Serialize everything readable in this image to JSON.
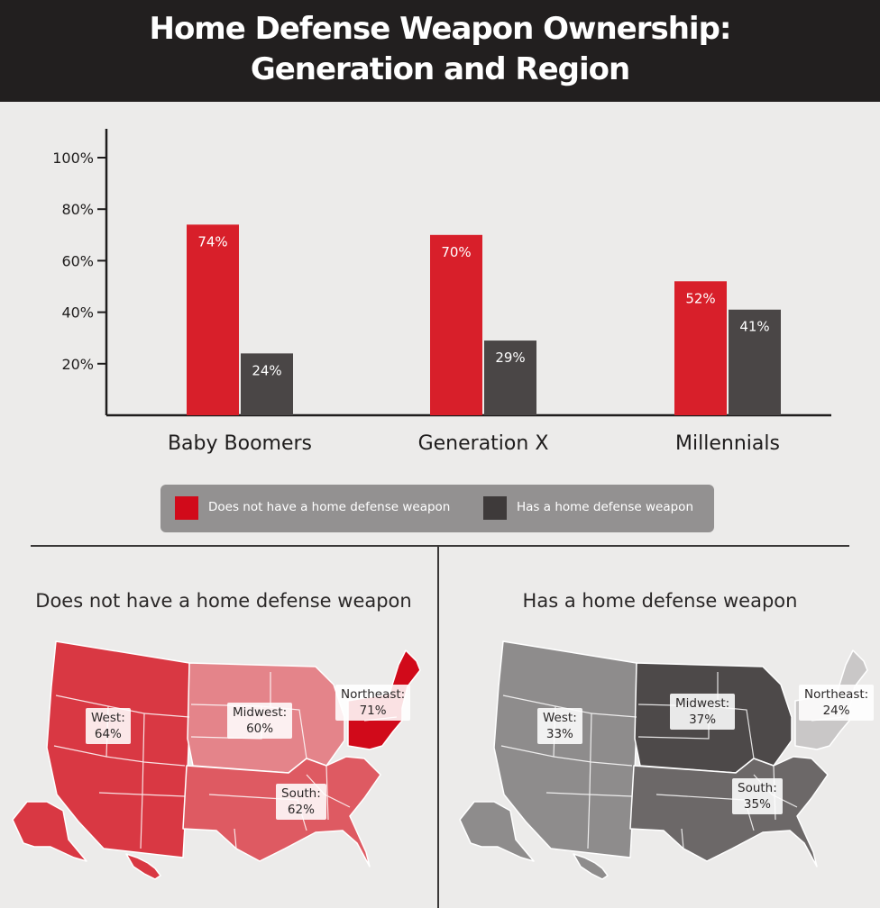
{
  "title_line1": "Home Defense Weapon Ownership:",
  "title_line2": "Generation and Region",
  "colors": {
    "no_weapon": "#d81f2a",
    "has_weapon": "#4a4646",
    "header": "#221f1f"
  },
  "chart_data": {
    "type": "bar",
    "categories": [
      "Baby Boomers",
      "Generation X",
      "Millennials"
    ],
    "series": [
      {
        "name": "Does not have a home defense weapon",
        "values": [
          74,
          70,
          52
        ],
        "labels": [
          "74%",
          "70%",
          "52%"
        ]
      },
      {
        "name": "Has a home defense weapon",
        "values": [
          24,
          29,
          41
        ],
        "labels": [
          "24%",
          "29%",
          "41%"
        ]
      }
    ],
    "ylim": [
      0,
      100
    ],
    "yticks": [
      20,
      40,
      60,
      80,
      100
    ],
    "ytick_labels": [
      "20%",
      "40%",
      "60%",
      "80%",
      "100%"
    ],
    "legend": "bottom"
  },
  "legend": {
    "no_weapon": "Does not have a home defense weapon",
    "has_weapon": "Has a home defense weapon"
  },
  "maps": {
    "left": {
      "title": "Does not have a home defense weapon",
      "regions": {
        "west": {
          "name": "West:",
          "value": "64%"
        },
        "midwest": {
          "name": "Midwest:",
          "value": "60%"
        },
        "northeast": {
          "name": "Northeast:",
          "value": "71%"
        },
        "south": {
          "name": "South:",
          "value": "62%"
        }
      }
    },
    "right": {
      "title": "Has a home defense weapon",
      "regions": {
        "west": {
          "name": "West:",
          "value": "33%"
        },
        "midwest": {
          "name": "Midwest:",
          "value": "37%"
        },
        "northeast": {
          "name": "Northeast:",
          "value": "24%"
        },
        "south": {
          "name": "South:",
          "value": "35%"
        }
      }
    }
  }
}
